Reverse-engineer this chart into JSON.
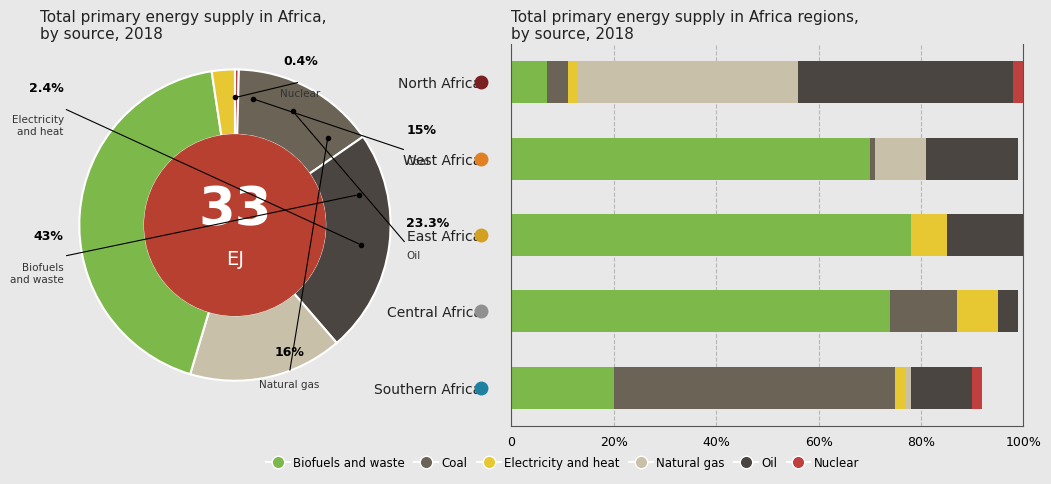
{
  "title_left": "Total primary energy supply in Africa,\nby source, 2018",
  "title_right": "Total primary energy supply in Africa regions,\nby source, 2018",
  "donut_center_text": "33",
  "donut_center_sub": "EJ",
  "donut_data": {
    "Biofuels and waste": 43.0,
    "Coal": 15.0,
    "Oil": 23.3,
    "Natural gas": 16.0,
    "Electricity and heat": 2.4,
    "Nuclear": 0.4
  },
  "donut_order": [
    "Nuclear",
    "Coal",
    "Oil",
    "Natural gas",
    "Biofuels and waste",
    "Electricity and heat"
  ],
  "donut_labels": {
    "Nuclear": {
      "pct": "0.4%",
      "label": "Nuclear"
    },
    "Coal": {
      "pct": "15%",
      "label": "Coal"
    },
    "Oil": {
      "pct": "23.3%",
      "label": "Oil"
    },
    "Natural gas": {
      "pct": "16%",
      "label": "Natural gas"
    },
    "Biofuels and waste": {
      "pct": "43%",
      "label": "Biofuels\nand waste"
    },
    "Electricity and heat": {
      "pct": "2.4%",
      "label": "Electricity\nand heat"
    }
  },
  "colors": {
    "Biofuels and waste": "#7DB94A",
    "Coal": "#6B6456",
    "Oil": "#4A4540",
    "Natural gas": "#C8C0A8",
    "Electricity and heat": "#E8C832",
    "Nuclear": "#C04040"
  },
  "donut_center_color": "#B84030",
  "regions": [
    "North Africa",
    "West Africa",
    "East Africa",
    "Central Africa",
    "Southern Africa"
  ],
  "region_dot_colors": [
    "#7B2020",
    "#E08020",
    "#D4A020",
    "#909090",
    "#2080A0"
  ],
  "region_data": {
    "North Africa": {
      "Biofuels and waste": 7,
      "Coal": 4,
      "Electricity and heat": 2,
      "Natural gas": 43,
      "Oil": 42,
      "Nuclear": 2
    },
    "West Africa": {
      "Biofuels and waste": 70,
      "Coal": 1,
      "Electricity and heat": 0,
      "Natural gas": 10,
      "Oil": 18,
      "Nuclear": 0
    },
    "East Africa": {
      "Biofuels and waste": 78,
      "Coal": 0,
      "Electricity and heat": 7,
      "Natural gas": 0,
      "Oil": 15,
      "Nuclear": 0
    },
    "Central Africa": {
      "Biofuels and waste": 74,
      "Coal": 13,
      "Electricity and heat": 8,
      "Natural gas": 0,
      "Oil": 4,
      "Nuclear": 0
    },
    "Southern Africa": {
      "Biofuels and waste": 20,
      "Coal": 55,
      "Electricity and heat": 2,
      "Natural gas": 1,
      "Oil": 12,
      "Nuclear": 2
    }
  },
  "bar_order": [
    "Biofuels and waste",
    "Coal",
    "Electricity and heat",
    "Natural gas",
    "Oil",
    "Nuclear"
  ],
  "background_color": "#E8E8E8",
  "legend_labels": [
    "Biofuels and waste",
    "Coal",
    "Electricity and heat",
    "Natural gas",
    "Oil",
    "Nuclear"
  ]
}
